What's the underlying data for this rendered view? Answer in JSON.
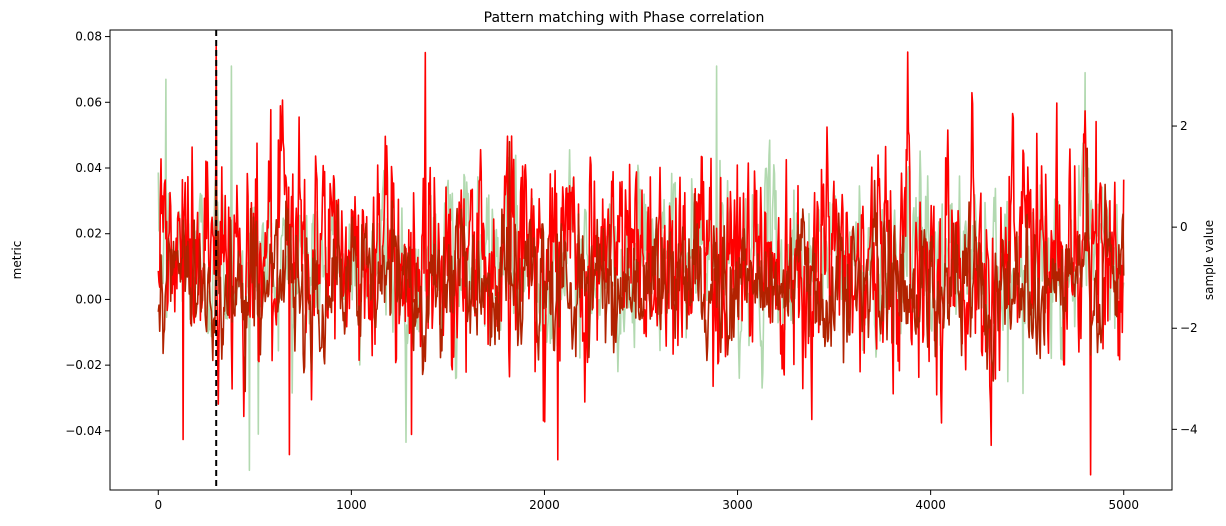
{
  "chart_data": {
    "type": "line",
    "title": "Pattern matching with Phase correlation",
    "xlabel": "",
    "ylabel": "metric",
    "y2label": "sample value",
    "xlim": [
      -250,
      5250
    ],
    "ylim": [
      -0.058,
      0.082
    ],
    "y2lim": [
      -5.2,
      3.9
    ],
    "x_ticks": [
      0,
      1000,
      2000,
      3000,
      4000,
      5000
    ],
    "x_tick_labels": [
      "0",
      "1000",
      "2000",
      "3000",
      "4000",
      "5000"
    ],
    "y_ticks": [
      -0.04,
      -0.02,
      0.0,
      0.02,
      0.04,
      0.06,
      0.08
    ],
    "y_tick_labels": [
      "−0.04",
      "−0.02",
      "0.00",
      "0.02",
      "0.04",
      "0.06",
      "0.08"
    ],
    "y2_ticks": [
      -4,
      -2,
      0,
      2
    ],
    "y2_tick_labels": [
      "−4",
      "−2",
      "0",
      "2"
    ],
    "grid": false,
    "vline": {
      "x": 300,
      "color": "#000000",
      "style": "dashed"
    },
    "series": [
      {
        "axis": "left",
        "color": "#b2d9b0",
        "x_start": 0,
        "x_end": 5000,
        "mean": 0.012,
        "std": 0.012,
        "ar": 0.6,
        "peaks": [
          [
            40,
            0.067
          ],
          [
            300,
            0.074
          ],
          [
            380,
            0.071
          ],
          [
            2890,
            0.071
          ],
          [
            4800,
            0.069
          ]
        ],
        "dips": [
          [
            470,
            -0.052
          ],
          [
            520,
            -0.041
          ],
          [
            4400,
            -0.025
          ]
        ]
      },
      {
        "axis": "right",
        "color": "#ff0000",
        "x_start": 0,
        "x_end": 5000,
        "mean": -0.5,
        "std": 1.1,
        "ar": 0.5,
        "peaks": [
          [
            300,
            3.6
          ],
          [
            4800,
            2.3
          ],
          [
            1810,
            1.8
          ]
        ],
        "dips": [
          [
            4830,
            -4.9
          ],
          [
            2070,
            -4.6
          ],
          [
            130,
            -4.2
          ],
          [
            1310,
            -4.1
          ],
          [
            680,
            -4.5
          ]
        ]
      },
      {
        "axis": "left",
        "color": "#b22200",
        "x_start": 0,
        "x_end": 5000,
        "mean": 0.005,
        "std": 0.01,
        "ar": 0.55,
        "peaks": [
          [
            1820,
            0.048
          ],
          [
            4810,
            0.046
          ],
          [
            300,
            0.035
          ]
        ],
        "dips": [
          [
            450,
            -0.028
          ]
        ]
      }
    ]
  }
}
